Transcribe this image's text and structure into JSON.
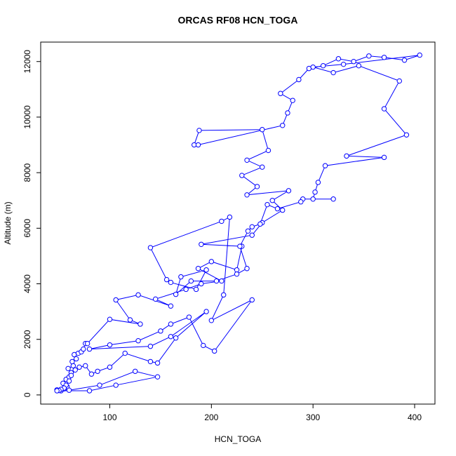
{
  "chart_data": {
    "type": "line",
    "markers": "circle",
    "title": "ORCAS RF08 HCN_TOGA",
    "x_label": "HCN_TOGA",
    "y_label": "Altitude (m)",
    "xlim": [
      32,
      420
    ],
    "ylim": [
      -330,
      12700
    ],
    "xticks": [
      100,
      200,
      300,
      400
    ],
    "yticks": [
      0,
      2000,
      4000,
      6000,
      8000,
      10000,
      12000
    ],
    "grid": false,
    "x": [
      48,
      52,
      55,
      58,
      54,
      57,
      60,
      62,
      59,
      64,
      63,
      67,
      65,
      69,
      72,
      74,
      76,
      78,
      100,
      130,
      120,
      106,
      128,
      160,
      145,
      175,
      190,
      210,
      187,
      200,
      225,
      230,
      190,
      240,
      250,
      270,
      260,
      276,
      235,
      245,
      230,
      250,
      235,
      256,
      250,
      188,
      183,
      187,
      270,
      275,
      280,
      268,
      286,
      296,
      310,
      325,
      340,
      355,
      370,
      390,
      405,
      330,
      300,
      320,
      345,
      385,
      370,
      392,
      333,
      370,
      312,
      305,
      302,
      300,
      320,
      290,
      288,
      265,
      255,
      248,
      240,
      236,
      228,
      235,
      225,
      205,
      180,
      165,
      170,
      195,
      185,
      160,
      156,
      140,
      210,
      218,
      212,
      200,
      240,
      203,
      192,
      178,
      160,
      150,
      128,
      100,
      80,
      140,
      160,
      195,
      165,
      147,
      140,
      115,
      100,
      88,
      82,
      76,
      70,
      66,
      62,
      60,
      57,
      55,
      52,
      50,
      48,
      80,
      106,
      147,
      125,
      90,
      60
    ],
    "series": [
      {
        "color": "#0000ff",
        "values": [
          180,
          150,
          220,
          300,
          420,
          560,
          650,
          800,
          950,
          1050,
          1200,
          1300,
          1450,
          1500,
          1550,
          1650,
          1850,
          1850,
          2720,
          2550,
          2700,
          3420,
          3600,
          3200,
          3450,
          3800,
          4000,
          4100,
          4550,
          4800,
          4500,
          5350,
          5420,
          5750,
          6200,
          6650,
          7000,
          7350,
          7200,
          7500,
          7900,
          8200,
          8450,
          8800,
          9550,
          9520,
          9000,
          9000,
          9700,
          10150,
          10600,
          10850,
          11350,
          11750,
          11850,
          12100,
          12000,
          12200,
          12150,
          12050,
          12230,
          11900,
          11800,
          11600,
          11850,
          11300,
          10300,
          9360,
          8600,
          8550,
          8250,
          7650,
          7300,
          7050,
          7050,
          7050,
          6950,
          6700,
          6850,
          6150,
          6050,
          5900,
          5350,
          4550,
          4350,
          4100,
          4100,
          3620,
          4250,
          4500,
          3800,
          4050,
          4150,
          5300,
          6250,
          6400,
          3600,
          2680,
          3420,
          1580,
          1780,
          2800,
          2550,
          2300,
          1950,
          1800,
          1650,
          1750,
          2100,
          3000,
          2050,
          1150,
          1200,
          1500,
          1000,
          850,
          750,
          1050,
          1000,
          900,
          700,
          500,
          350,
          250,
          200,
          160,
          150,
          150,
          350,
          650,
          850,
          350,
          170
        ]
      }
    ]
  }
}
